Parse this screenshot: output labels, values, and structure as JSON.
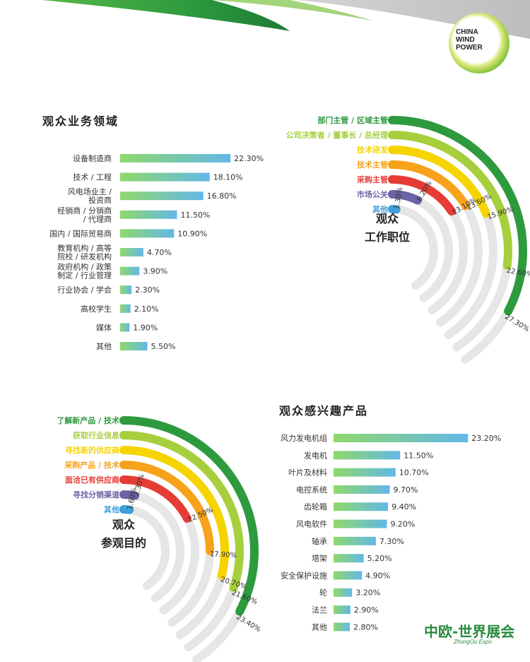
{
  "logos": {
    "china_wind_power": "CHINA\nWIND\nPOWER",
    "zhongou_main": "中欧-世界展会",
    "zhongou_sub": "ZhongOu Expo"
  },
  "colors": {
    "bar_gradient_start": "#8fd86b",
    "bar_gradient_end": "#62b8e8",
    "ring_track": "#e6e6e6"
  },
  "chart_data": [
    {
      "id": "business",
      "type": "bar",
      "title": "观众业务领域",
      "categories": [
        [
          "设备制造商"
        ],
        [
          "技术 / 工程"
        ],
        [
          "风电场业主 /",
          "投资商"
        ],
        [
          "经销商 / 分销商",
          "/ 代理商"
        ],
        [
          "国内 / 国际贸易商"
        ],
        [
          "教育机构 / 高等",
          "院校 / 研发机构"
        ],
        [
          "政府机构 / 政策",
          "制定 / 行业管理"
        ],
        [
          "行业协会 / 学会"
        ],
        [
          "高校学生"
        ],
        [
          "媒体"
        ],
        [
          "其他"
        ]
      ],
      "values": [
        22.3,
        18.1,
        16.8,
        11.5,
        10.9,
        4.7,
        3.9,
        2.3,
        2.1,
        1.9,
        5.5
      ],
      "value_labels": [
        "22.30%",
        "18.10%",
        "16.80%",
        "11.50%",
        "10.90%",
        "4.70%",
        "3.90%",
        "2.30%",
        "2.10%",
        "1.90%",
        "5.50%"
      ]
    },
    {
      "id": "position",
      "type": "radial-bar",
      "title": [
        "观众",
        "工作职位"
      ],
      "categories": [
        "部门主管 / 区域主管",
        "公司决策者 / 董事长 / 总经理",
        "技术研发",
        "技术主管",
        "采购主管",
        "市场公关",
        "其他"
      ],
      "values": [
        27.3,
        22.6,
        15.9,
        13.6,
        13.1,
        6.2,
        1.3
      ],
      "value_labels": [
        "27.30%",
        "22.60%",
        "15.90%",
        "13.60%",
        "13.10%",
        "6.20%",
        "1.30%"
      ],
      "colors": [
        "#2e9a3e",
        "#a7cf3d",
        "#f6d400",
        "#f7a21b",
        "#e53c35",
        "#6a63a6",
        "#3f9fd8"
      ]
    },
    {
      "id": "purpose",
      "type": "radial-bar",
      "title": [
        "观众",
        "参观目的"
      ],
      "categories": [
        "了解新产品 / 技术",
        "获取行业信息",
        "寻找新的供应商",
        "采购产品 / 技术",
        "面洽已有供应商",
        "寻找分销渠道",
        "其他"
      ],
      "values": [
        23.4,
        21.6,
        20.7,
        17.9,
        12.5,
        2.3,
        1.6
      ],
      "value_labels": [
        "23.40%",
        "21.60%",
        "20.70%",
        "17.90%",
        "12.50%",
        "2.30%",
        "1.60%"
      ],
      "colors": [
        "#2e9a3e",
        "#a7cf3d",
        "#f6d400",
        "#f7a21b",
        "#e53c35",
        "#6a63a6",
        "#3f9fd8"
      ]
    },
    {
      "id": "products",
      "type": "bar",
      "title": "观众感兴趣产品",
      "categories": [
        [
          "风力发电机组"
        ],
        [
          "发电机"
        ],
        [
          "叶片及材料"
        ],
        [
          "电控系统"
        ],
        [
          "齿轮箱"
        ],
        [
          "风电软件"
        ],
        [
          "轴承"
        ],
        [
          "塔架"
        ],
        [
          "安全保护设施"
        ],
        [
          "轮"
        ],
        [
          "法兰"
        ],
        [
          "其他"
        ]
      ],
      "values": [
        23.2,
        11.5,
        10.7,
        9.7,
        9.4,
        9.2,
        7.3,
        5.2,
        4.9,
        3.2,
        2.9,
        2.8
      ],
      "value_labels": [
        "23.20%",
        "11.50%",
        "10.70%",
        "9.70%",
        "9.40%",
        "9.20%",
        "7.30%",
        "5.20%",
        "4.90%",
        "3.20%",
        "2.90%",
        "2.80%"
      ]
    }
  ]
}
